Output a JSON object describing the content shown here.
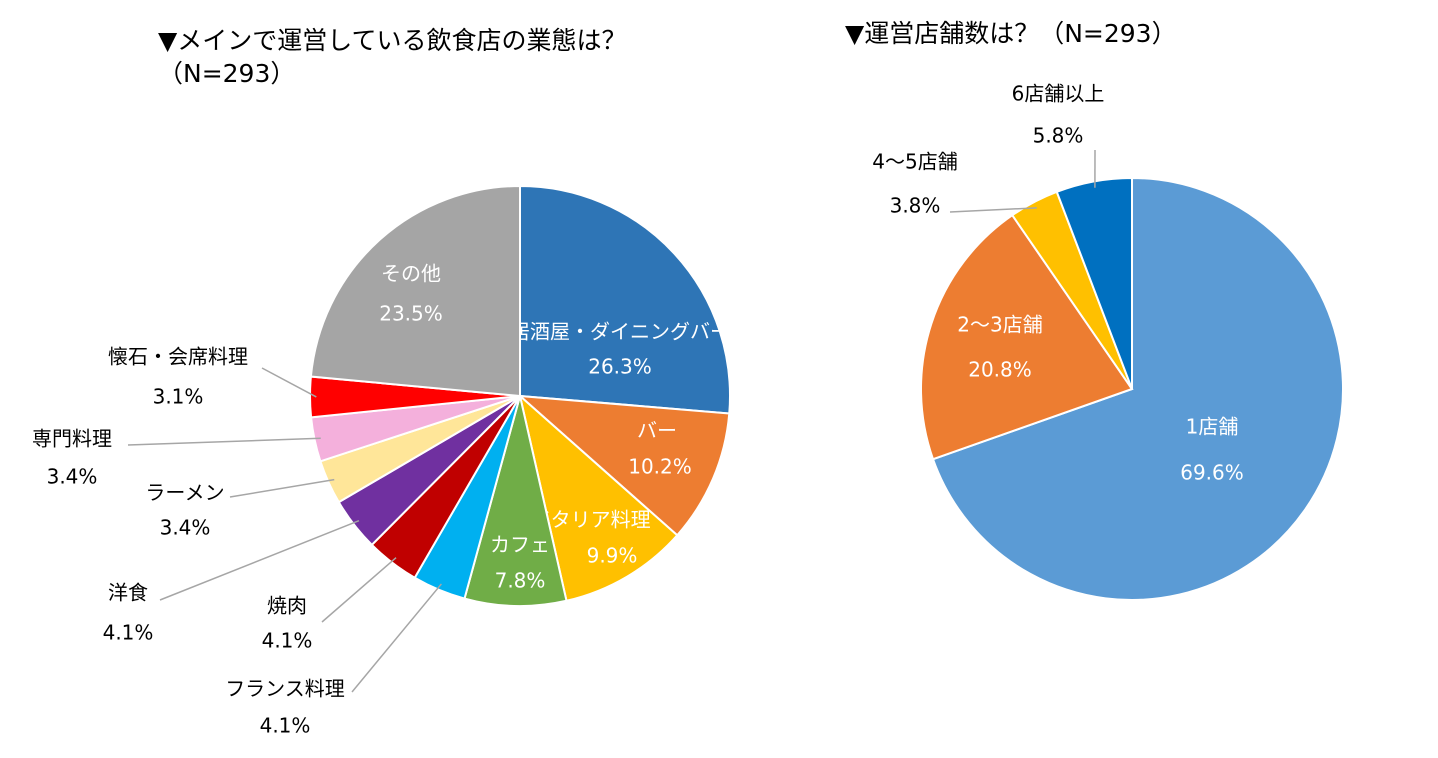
{
  "chart_data": [
    {
      "type": "pie",
      "title": "▼メインで運営している飲食店の業態は？",
      "subtitle": "（N=293）",
      "categories": [
        "居酒屋・ダイニングバー",
        "バー",
        "イタリア料理",
        "カフェ",
        "フランス料理",
        "焼肉",
        "洋食",
        "ラーメン",
        "専門料理",
        "懐石・会席料理",
        "その他"
      ],
      "values": [
        26.3,
        10.2,
        9.9,
        7.8,
        4.1,
        4.1,
        4.1,
        3.4,
        3.4,
        3.1,
        23.5
      ],
      "value_labels": [
        "26.3%",
        "10.2%",
        "9.9%",
        "7.8%",
        "4.1%",
        "4.1%",
        "4.1%",
        "3.4%",
        "3.4%",
        "3.1%",
        "23.5%"
      ],
      "colors": [
        "#2e75b6",
        "#ed7d31",
        "#ffc000",
        "#70ad47",
        "#00b0f0",
        "#c00000",
        "#7030a0",
        "#ffe699",
        "#f4b0dc",
        "#ff0000",
        "#a5a5a5"
      ]
    },
    {
      "type": "pie",
      "title": "▼運営店舗数は？（N=293）",
      "categories": [
        "1店舗",
        "2～3店舗",
        "4～5店舗",
        "6店舗以上"
      ],
      "values": [
        69.6,
        20.8,
        3.8,
        5.8
      ],
      "value_labels": [
        "69.6%",
        "20.8%",
        "3.8%",
        "5.8%"
      ],
      "colors": [
        "#5b9bd5",
        "#ed7d31",
        "#ffc000",
        "#0070c0"
      ]
    }
  ]
}
